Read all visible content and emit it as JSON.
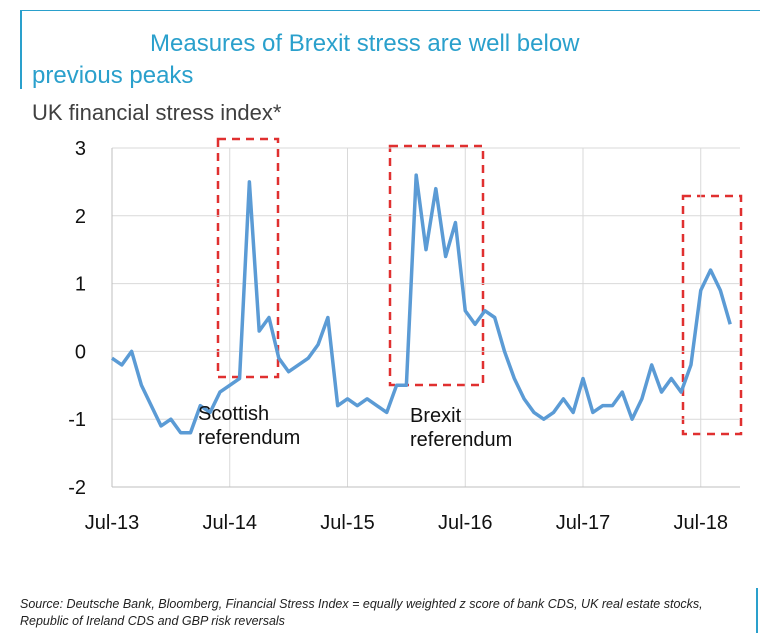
{
  "chart_data": {
    "type": "line",
    "title": "Measures of Brexit stress are well below previous peaks",
    "y_label": "UK financial stress index*",
    "source": "Source: Deutsche Bank, Bloomberg, Financial Stress Index = equally weighted z score of bank CDS, UK real estate stocks, Republic of Ireland CDS and GBP risk reversals",
    "annotations": [
      "Scottish referendum",
      "Brexit referendum"
    ],
    "x": [
      "2013-07",
      "2013-08",
      "2013-09",
      "2013-10",
      "2013-11",
      "2013-12",
      "2014-01",
      "2014-02",
      "2014-03",
      "2014-04",
      "2014-05",
      "2014-06",
      "2014-07",
      "2014-08",
      "2014-09",
      "2014-10",
      "2014-11",
      "2014-12",
      "2015-01",
      "2015-02",
      "2015-03",
      "2015-04",
      "2015-05",
      "2015-06",
      "2015-07",
      "2015-08",
      "2015-09",
      "2015-10",
      "2015-11",
      "2015-12",
      "2016-01",
      "2016-02",
      "2016-03",
      "2016-04",
      "2016-05",
      "2016-06",
      "2016-07",
      "2016-08",
      "2016-09",
      "2016-10",
      "2016-11",
      "2016-12",
      "2017-01",
      "2017-02",
      "2017-03",
      "2017-04",
      "2017-05",
      "2017-06",
      "2017-07",
      "2017-08",
      "2017-09",
      "2017-10",
      "2017-11",
      "2017-12",
      "2018-01",
      "2018-02",
      "2018-03",
      "2018-04",
      "2018-05",
      "2018-06",
      "2018-07",
      "2018-08",
      "2018-09",
      "2018-10"
    ],
    "series": [
      {
        "color": "#5b9bd5",
        "values": [
          -0.1,
          -0.2,
          0.0,
          -0.5,
          -0.8,
          -1.1,
          -1.0,
          -1.2,
          -1.2,
          -0.8,
          -0.9,
          -0.6,
          -0.5,
          -0.4,
          2.5,
          0.3,
          0.5,
          -0.1,
          -0.3,
          -0.2,
          -0.1,
          0.1,
          0.5,
          -0.8,
          -0.7,
          -0.8,
          -0.7,
          -0.8,
          -0.9,
          -0.5,
          -0.5,
          2.6,
          1.5,
          2.4,
          1.4,
          1.9,
          0.6,
          0.4,
          0.6,
          0.5,
          0.0,
          -0.4,
          -0.7,
          -0.9,
          -1.0,
          -0.9,
          -0.7,
          -0.9,
          -0.4,
          -0.9,
          -0.8,
          -0.8,
          -0.6,
          -1.0,
          -0.7,
          -0.2,
          -0.6,
          -0.4,
          -0.6,
          -0.2,
          0.9,
          1.2,
          0.9,
          0.4
        ]
      }
    ],
    "xlim": [
      "2013-07",
      "2018-11"
    ],
    "xticks": [
      {
        "value": "2013-07",
        "label": "Jul-13"
      },
      {
        "value": "2014-07",
        "label": "Jul-14"
      },
      {
        "value": "2015-07",
        "label": "Jul-15"
      },
      {
        "value": "2016-07",
        "label": "Jul-16"
      },
      {
        "value": "2017-07",
        "label": "Jul-17"
      },
      {
        "value": "2018-07",
        "label": "Jul-18"
      }
    ],
    "ylim": [
      -2,
      3
    ],
    "yticks": [
      -2,
      -1,
      0,
      1,
      2,
      3
    ],
    "grid": true
  }
}
